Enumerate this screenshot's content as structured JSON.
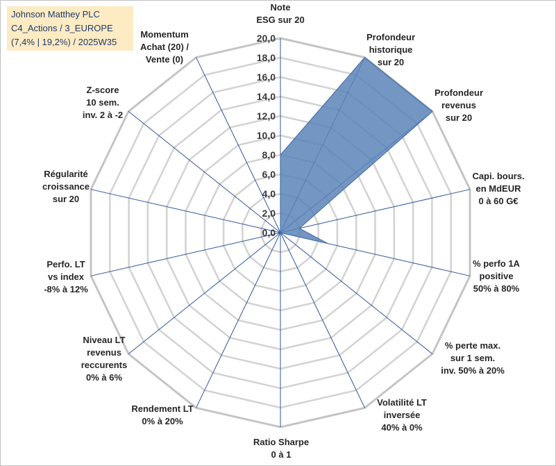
{
  "info_box": {
    "line1": "Johnson Matthey PLC",
    "line2": "C4_Actions / 3_EUROPE",
    "line3": "(7,4% | 19,2%) / 2025W35"
  },
  "colors": {
    "fill": "#5b84b8",
    "stroke": "#4a72a8",
    "grid": "#d2d2d2",
    "spoke": "#2f5597",
    "info_bg": "#fdebc4",
    "info_text": "#1f3a68"
  },
  "chart_data": {
    "type": "radar",
    "rmin": 0,
    "rmax": 20,
    "tick_step": 2,
    "tick_labels": [
      "0,0",
      "2,0",
      "4,0",
      "6,0",
      "8,0",
      "10,0",
      "12,0",
      "14,0",
      "16,0",
      "18,0",
      "20,0"
    ],
    "axes": [
      {
        "label": [
          "Note",
          "ESG sur 20"
        ],
        "value": 8.0
      },
      {
        "label": [
          "Profondeur",
          "historique",
          "sur 20"
        ],
        "value": 20.0
      },
      {
        "label": [
          "Profondeur",
          "revenus",
          "sur 20"
        ],
        "value": 20.0
      },
      {
        "label": [
          "Capi. bours.",
          "en MdEUR",
          "0 à 60 G€"
        ],
        "value": 2.0
      },
      {
        "label": [
          "% perfo 1A",
          "positive",
          "50% à 80%"
        ],
        "value": 5.0
      },
      {
        "label": [
          "% perte max.",
          "sur 1 sem.",
          "inv. 50% à 20%"
        ],
        "value": 0.0
      },
      {
        "label": [
          "Volatilité LT",
          "inversée",
          "40% à 0%"
        ],
        "value": 0.0
      },
      {
        "label": [
          "Ratio Sharpe",
          "0 à 1"
        ],
        "value": 0.3
      },
      {
        "label": [
          "Rendement LT",
          "0% à 20%"
        ],
        "value": 0.0
      },
      {
        "label": [
          "Niveau LT",
          "revenus",
          "reccurents",
          "0% à 6%"
        ],
        "value": 0.0
      },
      {
        "label": [
          "Perfo. LT",
          "vs index",
          "-8% à 12%"
        ],
        "value": 0.0
      },
      {
        "label": [
          "Régularité",
          "croissance",
          "sur 20"
        ],
        "value": 0.0
      },
      {
        "label": [
          "Z-score",
          "10 sem.",
          "inv. 2 à -2"
        ],
        "value": 0.0
      },
      {
        "label": [
          "Momentum",
          "Achat (20) /",
          "Vente (0)"
        ],
        "value": 0.0
      }
    ]
  }
}
